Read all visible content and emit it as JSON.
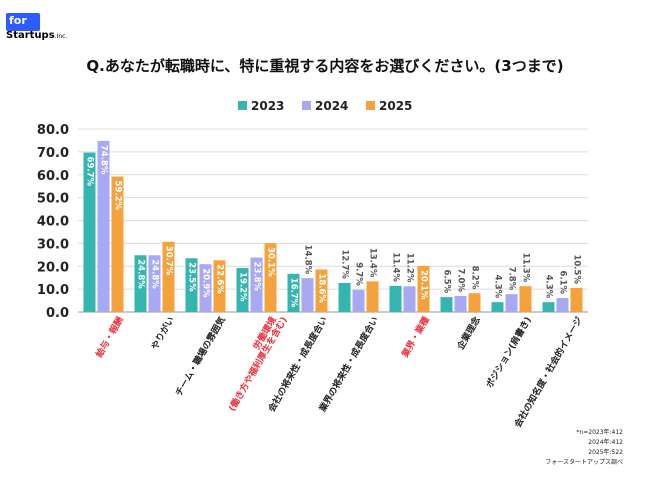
{
  "brand": {
    "logo_top": "for",
    "logo_name": "Startups",
    "logo_suffix": ".Inc."
  },
  "title": "Q.あなたが転職時に、特に重視する内容をお選びください。(3つまで)",
  "colors": {
    "2023": "#34b5b0",
    "2024": "#a9a9f3",
    "2025": "#f5a23c",
    "highlight_label": "#e8323c",
    "label": "#222222"
  },
  "chart_data": {
    "type": "bar",
    "title": "Q.あなたが転職時に、特に重視する内容をお選びください。(3つまで)",
    "ylim": [
      0,
      80
    ],
    "yticks": [
      "0.0",
      "10.0",
      "20.0",
      "30.0",
      "40.0",
      "50.0",
      "60.0",
      "70.0",
      "80.0"
    ],
    "grid": true,
    "legend_position": "top-center",
    "categories": [
      {
        "label": [
          "給与・報酬"
        ],
        "highlight": true
      },
      {
        "label": [
          "やりがい"
        ],
        "highlight": false
      },
      {
        "label": [
          "チーム・職場の雰囲気"
        ],
        "highlight": false
      },
      {
        "label": [
          "労働環境",
          "(働き方や福利厚生を含む)"
        ],
        "highlight": true
      },
      {
        "label": [
          "会社の将来性・成長度合い"
        ],
        "highlight": false
      },
      {
        "label": [
          "業界の将来性・成長度合い"
        ],
        "highlight": false
      },
      {
        "label": [
          "業界・業種"
        ],
        "highlight": true
      },
      {
        "label": [
          "企業理念"
        ],
        "highlight": false
      },
      {
        "label": [
          "ポジション(肩書き)"
        ],
        "highlight": false
      },
      {
        "label": [
          "会社の知名度・社会的イメージ"
        ],
        "highlight": false
      }
    ],
    "series": [
      {
        "name": "2023",
        "values": [
          69.7,
          24.8,
          23.5,
          19.2,
          16.7,
          12.7,
          11.4,
          6.5,
          4.3,
          4.3
        ],
        "labels": [
          "69.7%",
          "24.8%",
          "23.5%",
          "19.2%",
          "16.7%",
          "12.7%",
          "11.4%",
          "6.5%",
          "4.3%",
          "4.3%"
        ]
      },
      {
        "name": "2024",
        "values": [
          74.8,
          24.8,
          20.9,
          23.8,
          14.8,
          9.7,
          11.2,
          7.0,
          7.8,
          6.1
        ],
        "labels": [
          "74.8%",
          "24.8%",
          "20.9%",
          "23.8%",
          "14.8%",
          "9.7%",
          "11.2%",
          "7.0%",
          "7.8%",
          "6.1%"
        ]
      },
      {
        "name": "2025",
        "values": [
          59.2,
          30.7,
          22.6,
          30.1,
          18.6,
          13.4,
          20.1,
          8.2,
          11.3,
          10.5
        ],
        "labels": [
          "59.2%",
          "30.7%",
          "22.6%",
          "30.1%",
          "18.6%",
          "13.4%",
          "20.1%",
          "8.2%",
          "11.3%",
          "10.5%"
        ]
      }
    ]
  },
  "notes": [
    "*n=2023年:412",
    "2024年:412",
    "2025年:522",
    "フォースタートアップス調べ"
  ]
}
